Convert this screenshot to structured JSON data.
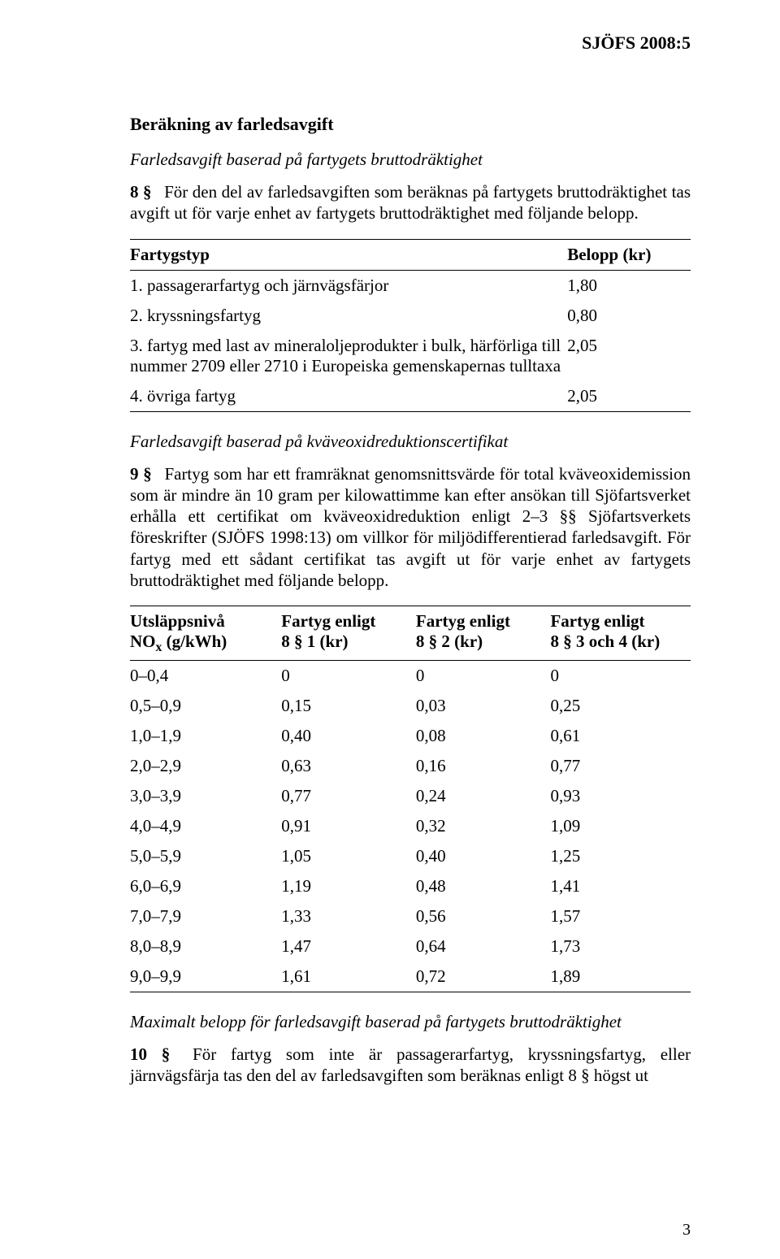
{
  "header": {
    "doc_ref": "SJÖFS 2008:5"
  },
  "section": {
    "title": "Beräkning av farledsavgift",
    "sub1": "Farledsavgift baserad på fartygets bruttodräktighet",
    "p8_num": "8 §",
    "p8_text": "För den del av farledsavgiften som beräknas på fartygets bruttodräktighet tas avgift ut för varje enhet av fartygets bruttodräktighet med följande belopp."
  },
  "table1": {
    "head1": "Fartygstyp",
    "head2": "Belopp (kr)",
    "rows": [
      {
        "label": "1. passagerarfartyg och järnvägsfärjor",
        "value": "1,80"
      },
      {
        "label": "2. kryssningsfartyg",
        "value": "0,80"
      },
      {
        "label": "3. fartyg med last av mineraloljeprodukter i bulk, härförliga till nummer 2709 eller 2710 i Europeiska gemenskapernas tulltaxa",
        "value": "2,05"
      },
      {
        "label": "4. övriga fartyg",
        "value": "2,05"
      }
    ]
  },
  "section2": {
    "sub": "Farledsavgift baserad på kväveoxidreduktionscertifikat",
    "p9_num": "9 §",
    "p9_text": "Fartyg som har ett framräknat genomsnittsvärde för total kväveoxidemission som är mindre än 10 gram per kilowattimme kan efter ansökan till Sjöfartsverket erhålla ett certifikat om kväveoxidreduktion enligt 2–3 §§ Sjöfartsverkets föreskrifter (SJÖFS 1998:13) om villkor för miljödifferentierad farledsavgift. För fartyg med ett sådant certifikat tas avgift ut för varje enhet av fartygets bruttodräktighet med följande belopp."
  },
  "table2": {
    "h1a": "Utsläppsnivå",
    "h1b": "NOx (g/kWh)",
    "h2a": "Fartyg enligt",
    "h2b": "8 § 1 (kr)",
    "h3a": "Fartyg enligt",
    "h3b": "8 § 2 (kr)",
    "h4a": "Fartyg enligt",
    "h4b": "8 § 3 och 4 (kr)",
    "rows": [
      {
        "c1": "0–0,4",
        "c2": "0",
        "c3": "0",
        "c4": "0"
      },
      {
        "c1": "0,5–0,9",
        "c2": "0,15",
        "c3": "0,03",
        "c4": "0,25"
      },
      {
        "c1": "1,0–1,9",
        "c2": "0,40",
        "c3": "0,08",
        "c4": "0,61"
      },
      {
        "c1": "2,0–2,9",
        "c2": "0,63",
        "c3": "0,16",
        "c4": "0,77"
      },
      {
        "c1": "3,0–3,9",
        "c2": "0,77",
        "c3": "0,24",
        "c4": "0,93"
      },
      {
        "c1": "4,0–4,9",
        "c2": "0,91",
        "c3": "0,32",
        "c4": "1,09"
      },
      {
        "c1": "5,0–5,9",
        "c2": "1,05",
        "c3": "0,40",
        "c4": "1,25"
      },
      {
        "c1": "6,0–6,9",
        "c2": "1,19",
        "c3": "0,48",
        "c4": "1,41"
      },
      {
        "c1": "7,0–7,9",
        "c2": "1,33",
        "c3": "0,56",
        "c4": "1,57"
      },
      {
        "c1": "8,0–8,9",
        "c2": "1,47",
        "c3": "0,64",
        "c4": "1,73"
      },
      {
        "c1": "9,0–9,9",
        "c2": "1,61",
        "c3": "0,72",
        "c4": "1,89"
      }
    ]
  },
  "section3": {
    "sub": "Maximalt belopp för farledsavgift baserad på fartygets bruttodräktighet",
    "p10_num": "10 §",
    "p10_text": "För fartyg som inte är passagerarfartyg, kryssningsfartyg, eller järnvägsfärja tas den del av farledsavgiften som beräknas enligt 8 § högst ut"
  },
  "footer": {
    "page_num": "3"
  }
}
